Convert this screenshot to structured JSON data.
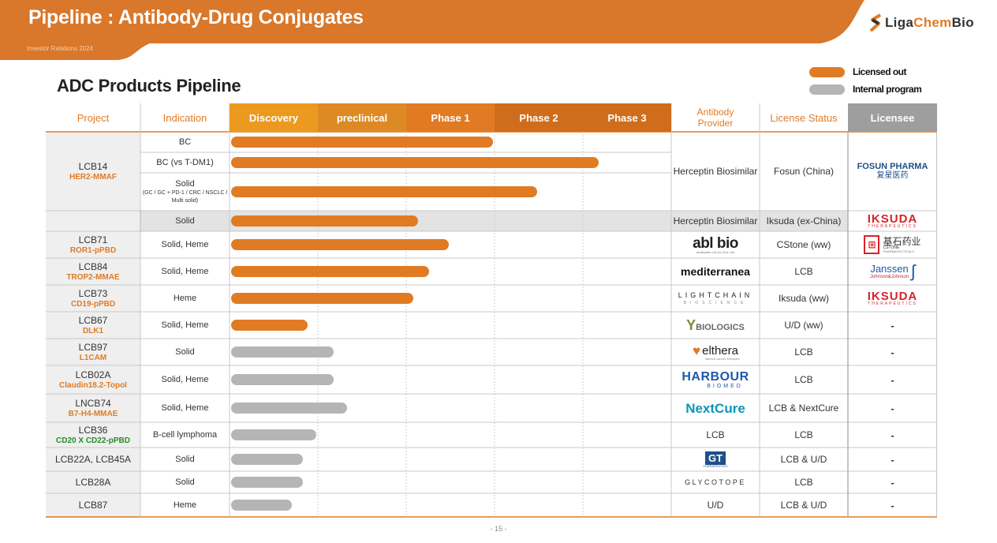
{
  "header": {
    "title": "Pipeline : Antibody-Drug Conjugates",
    "subtitle": "Investor Relations 2024",
    "company_logo": {
      "text_dark": "Liga",
      "text_orange": "Chem",
      "text_dark2": "Bio",
      "icon": "ligachem-s-icon"
    }
  },
  "section_title": "ADC Products Pipeline",
  "legend": [
    {
      "label": "Licensed out",
      "color": "#e07b24"
    },
    {
      "label": "Internal program",
      "color": "#b5b5b5"
    }
  ],
  "colors": {
    "orange": "#e07b24",
    "grey": "#b5b5b5",
    "discovery": "#eb9a1f",
    "preclinical": "#de8a24",
    "phase": "#e07b24",
    "phase_dark": "#cf6d1c",
    "licensee_header": "#9e9e9e"
  },
  "table": {
    "headers": {
      "project": "Project",
      "indication": "Indication",
      "stages": [
        "Discovery",
        "preclinical",
        "Phase 1",
        "Phase 2",
        "Phase 3"
      ],
      "antibody_provider": "Antibody Provider",
      "license_status": "License Status",
      "licensee": "Licensee"
    },
    "rows": [
      {
        "name": "LCB14",
        "target": "HER2-MMAF",
        "indication": "BC",
        "progress": 0.6,
        "status": "licensed"
      },
      {
        "indication": "BC (vs T-DM1)",
        "progress": 0.84,
        "status": "licensed"
      },
      {
        "indication": "Solid",
        "indication_detail_1": "(GC / GC + PD-1 / CRC / NSCLC /",
        "indication_detail_2": "Multi solid)",
        "progress": 0.7,
        "status": "licensed"
      },
      {
        "indication": "Solid",
        "progress": 0.43,
        "status": "licensed"
      },
      {
        "name": "LCB71",
        "target": "ROR1-pPBD",
        "indication": "Solid, Heme",
        "progress": 0.5,
        "status": "licensed"
      },
      {
        "name": "LCB84",
        "target": "TROP2-MMAE",
        "indication": "Solid, Heme",
        "progress": 0.455,
        "status": "licensed"
      },
      {
        "name": "LCB73",
        "target": "CD19-pPBD",
        "indication": "Heme",
        "progress": 0.42,
        "status": "licensed"
      },
      {
        "name": "LCB67",
        "target": "DLK1",
        "indication": "Solid, Heme",
        "progress": 0.18,
        "status": "licensed"
      },
      {
        "name": "LCB97",
        "target": "L1CAM",
        "indication": "Solid",
        "progress": 0.24,
        "status": "internal"
      },
      {
        "name": "LCB02A",
        "target": "Claudin18.2-Topol",
        "indication": "Solid, Heme",
        "progress": 0.24,
        "status": "internal"
      },
      {
        "name": "LNCB74",
        "target": "B7-H4-MMAE",
        "indication": "Solid, Heme",
        "progress": 0.27,
        "status": "internal"
      },
      {
        "name": "LCB36",
        "target": "CD20 X CD22-pPBD",
        "target_color": "green",
        "indication": "B-cell lymphoma",
        "progress": 0.2,
        "status": "internal"
      },
      {
        "name": "LCB22A, LCB45A",
        "indication": "Solid",
        "progress": 0.17,
        "status": "internal"
      },
      {
        "name": "LCB28A",
        "indication": "Solid",
        "progress": 0.17,
        "status": "internal"
      },
      {
        "name": "LCB87",
        "indication": "Heme",
        "progress": 0.145,
        "status": "internal"
      }
    ],
    "providers": [
      {
        "text": "Herceptin Biosimilar"
      },
      {
        "text": "Herceptin Biosimilar"
      },
      {
        "logo": "abl bio",
        "sub": "Antibodies Let Us Give Life"
      },
      {
        "logo": "mediterranea"
      },
      {
        "logo": "LIGHTCHAIN",
        "sub": "BIOSCIENCE"
      },
      {
        "logo": "BIOLOGICS"
      },
      {
        "logo": "elthera",
        "sub": "tailored cancer therapies"
      },
      {
        "logo": "HARBOUR",
        "sub": "BIOMED"
      },
      {
        "logo": "NextCure"
      },
      {
        "text": "LCB"
      },
      {
        "logo": "GT",
        "sub": "THERAPEUTICS"
      },
      {
        "logo": "GLYCOTOPE"
      },
      {
        "text": "U/D"
      }
    ],
    "license_status": [
      "Fosun (China)",
      "Iksuda (ex-China)",
      "CStone (ww)",
      "LCB",
      "Iksuda (ww)",
      "U/D (ww)",
      "LCB",
      "LCB",
      "LCB & NextCure",
      "LCB",
      "LCB & U/D",
      "LCB",
      "LCB & U/D"
    ],
    "licensees": [
      {
        "logo": "FOSUN PHARMA",
        "sub": "复星医药"
      },
      {
        "logo": "IKSUDA",
        "sub": "THERAPEUTICS"
      },
      {
        "logo": "基石药业",
        "sub": "CSTONE",
        "sub2": "PHARMACEUTICALS"
      },
      {
        "logo": "Janssen",
        "sub": "Johnson&Johnson"
      },
      {
        "logo": "IKSUDA",
        "sub": "THERAPEUTICS"
      },
      {
        "text": "-"
      },
      {
        "text": "-"
      },
      {
        "text": "-"
      },
      {
        "text": "-"
      },
      {
        "text": "-"
      },
      {
        "text": "-"
      },
      {
        "text": "-"
      },
      {
        "text": "-"
      }
    ]
  },
  "page_number": "- 15 -"
}
